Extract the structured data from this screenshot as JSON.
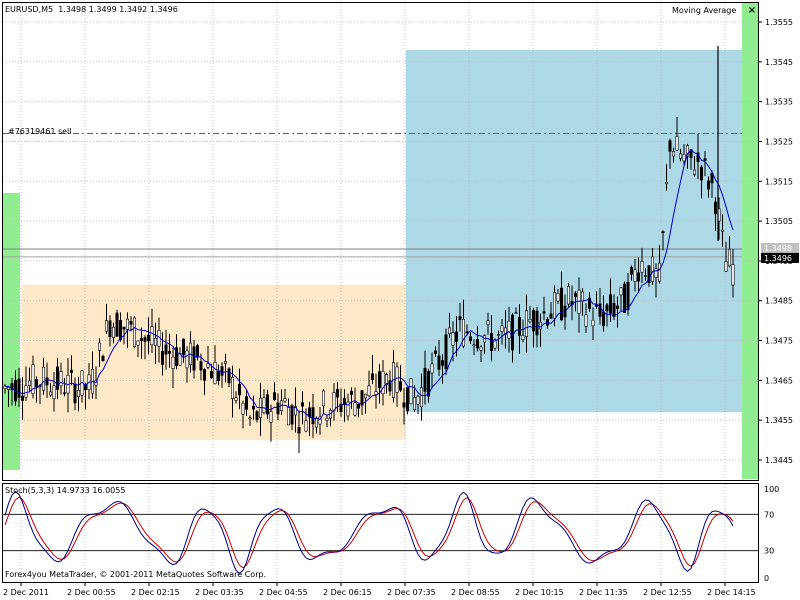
{
  "header": {
    "symbol_timeframe": "EURUSD,M5",
    "ohlc": "1.3498 1.3499 1.3492 1.3496",
    "indicator_name": "Moving Average",
    "close_glyph": "×"
  },
  "order_line": {
    "label": "#76319461 sell",
    "price": 1.3527,
    "color": "#2a8a2a"
  },
  "price_axis": {
    "ticks": [
      "1.3555",
      "1.3545",
      "1.3535",
      "1.3525",
      "1.3515",
      "1.3505",
      "1.3495",
      "1.3485",
      "1.3475",
      "1.3465",
      "1.3455",
      "1.3445"
    ],
    "bid_label": "1.3498",
    "current_label": "1.3496",
    "min": 1.344,
    "max": 1.356
  },
  "zones": {
    "asia": {
      "from": 1.345,
      "to": 1.3489,
      "color": "#fde8c8"
    },
    "europe": {
      "from": 1.3457,
      "to": 1.3548,
      "color": "#add8e6"
    },
    "side_bars_color": "#90ee90"
  },
  "stochastic": {
    "label": "Stoch(5,3,3) 14.9733 16.0055",
    "levels": [
      "100",
      "70",
      "30",
      "0"
    ],
    "main_color": "#000080",
    "signal_color": "#cc0000"
  },
  "time_axis": {
    "labels": [
      "2 Dec 2011",
      "2 Dec 00:55",
      "2 Dec 02:15",
      "2 Dec 03:35",
      "2 Dec 04:55",
      "2 Dec 06:15",
      "2 Dec 07:35",
      "2 Dec 08:55",
      "2 Dec 10:15",
      "2 Dec 11:35",
      "2 Dec 12:55",
      "2 Dec 14:15"
    ]
  },
  "copyright": "Forex4you MetaTrader, © 2001-2011 MetaQuotes Software Corp.",
  "colors": {
    "candle_body": "#000000",
    "ma_line": "#0000cc",
    "grid": "#c0c0c0"
  }
}
